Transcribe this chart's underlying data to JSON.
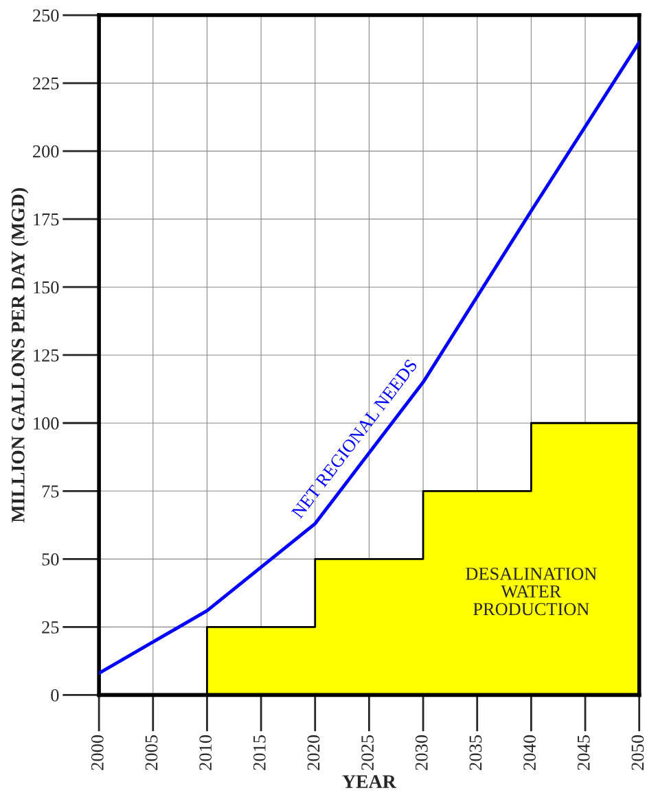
{
  "chart_data": {
    "type": "line",
    "xlabel": "YEAR",
    "ylabel": "MILLION GALLONS PER DAY (MGD)",
    "x": [
      2000,
      2010,
      2020,
      2030,
      2040,
      2050
    ],
    "series": [
      {
        "name": "DESALINATION\nWATER\nPRODUCTION",
        "type": "area",
        "color": "#ffff00",
        "values": [
          0,
          25,
          50,
          75,
          100,
          100
        ]
      },
      {
        "name": "NET REGIONAL NEEDS",
        "color": "#0000ff",
        "values": [
          8,
          31,
          63,
          115,
          178,
          240
        ]
      }
    ],
    "xlim": [
      2000,
      2050
    ],
    "xticks": [
      2000,
      2005,
      2010,
      2015,
      2020,
      2025,
      2030,
      2035,
      2040,
      2045,
      2050
    ],
    "ylim": [
      0,
      250
    ],
    "yticks": [
      0,
      25,
      50,
      75,
      100,
      125,
      150,
      175,
      200,
      225,
      250
    ],
    "grid": true,
    "marker": "none"
  }
}
